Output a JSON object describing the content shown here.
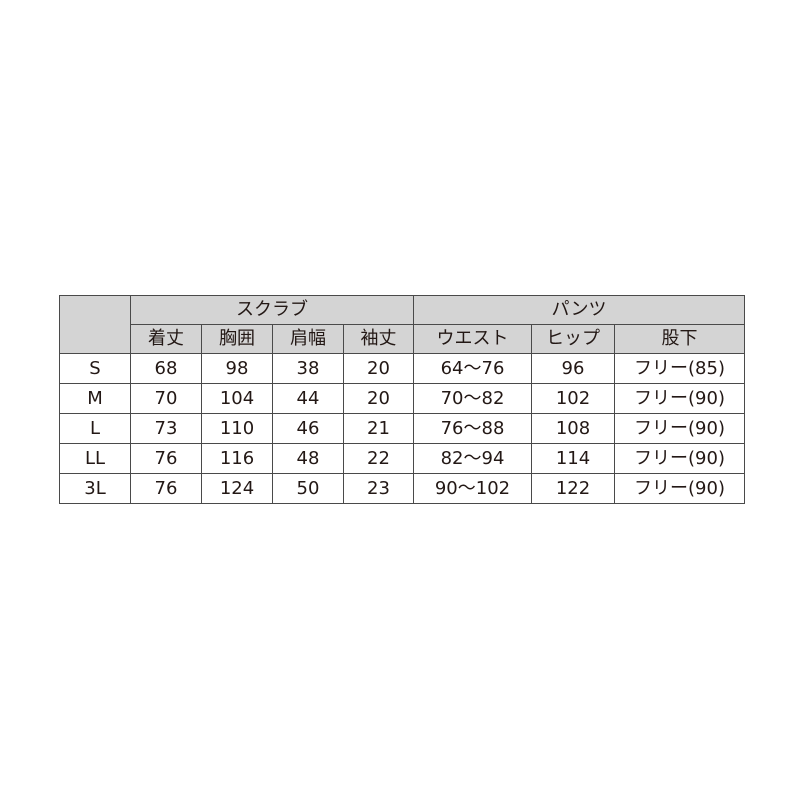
{
  "table": {
    "group_headers": [
      "スクラブ",
      "パンツ"
    ],
    "columns": [
      "着丈",
      "胸囲",
      "肩幅",
      "袖丈",
      "ウエスト",
      "ヒップ",
      "股下"
    ],
    "rows": [
      {
        "size": "S",
        "values": [
          "68",
          "98",
          "38",
          "20",
          "64〜76",
          "96",
          "フリー(85)"
        ]
      },
      {
        "size": "M",
        "values": [
          "70",
          "104",
          "44",
          "20",
          "70〜82",
          "102",
          "フリー(90)"
        ]
      },
      {
        "size": "L",
        "values": [
          "73",
          "110",
          "46",
          "21",
          "76〜88",
          "108",
          "フリー(90)"
        ]
      },
      {
        "size": "LL",
        "values": [
          "76",
          "116",
          "48",
          "22",
          "82〜94",
          "114",
          "フリー(90)"
        ]
      },
      {
        "size": "3L",
        "values": [
          "76",
          "124",
          "50",
          "23",
          "90〜102",
          "122",
          "フリー(90)"
        ]
      }
    ]
  }
}
